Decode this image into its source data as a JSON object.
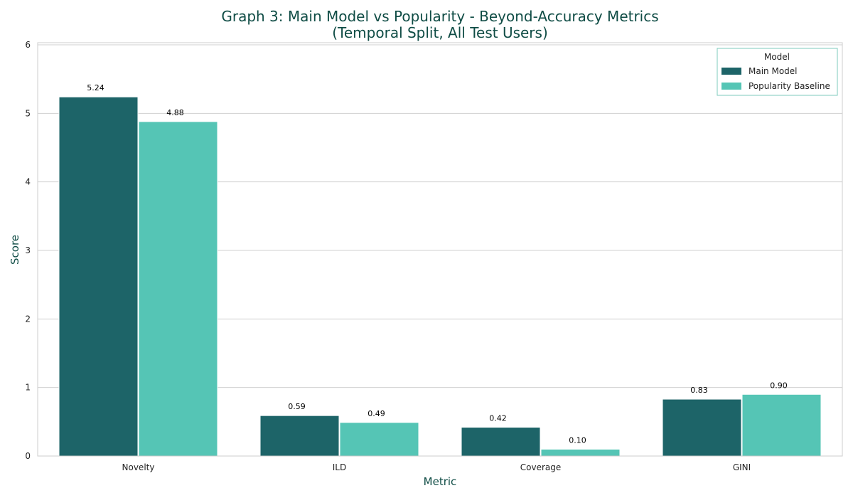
{
  "chart_data": {
    "type": "bar",
    "title": "Graph 3: Main Model vs Popularity - Beyond-Accuracy Metrics",
    "subtitle": "(Temporal Split, All Test Users)",
    "xlabel": "Metric",
    "ylabel": "Score",
    "categories": [
      "Novelty",
      "ILD",
      "Coverage",
      "GINI"
    ],
    "series": [
      {
        "name": "Main Model",
        "color": "#1d6468",
        "values": [
          5.24,
          0.59,
          0.42,
          0.83
        ],
        "labels": [
          "5.24",
          "0.59",
          "0.42",
          "0.83"
        ]
      },
      {
        "name": "Popularity Baseline",
        "color": "#55c5b5",
        "values": [
          4.88,
          0.49,
          0.1,
          0.9
        ],
        "labels": [
          "4.88",
          "0.49",
          "0.10",
          "0.90"
        ]
      }
    ],
    "ylim": [
      0,
      6
    ],
    "yticks": [
      0,
      1,
      2,
      3,
      4,
      5,
      6
    ],
    "ytick_labels": [
      "0",
      "1",
      "2",
      "3",
      "4",
      "5",
      "6"
    ],
    "grid": true,
    "legend": {
      "title": "Model",
      "position": "top-right"
    }
  },
  "colors": {
    "title": "#0f4c45",
    "grid": "#d0d0d0",
    "axis_frame": "#cccccc",
    "main_model": "#1d6468",
    "popularity_baseline": "#55c5b5"
  }
}
